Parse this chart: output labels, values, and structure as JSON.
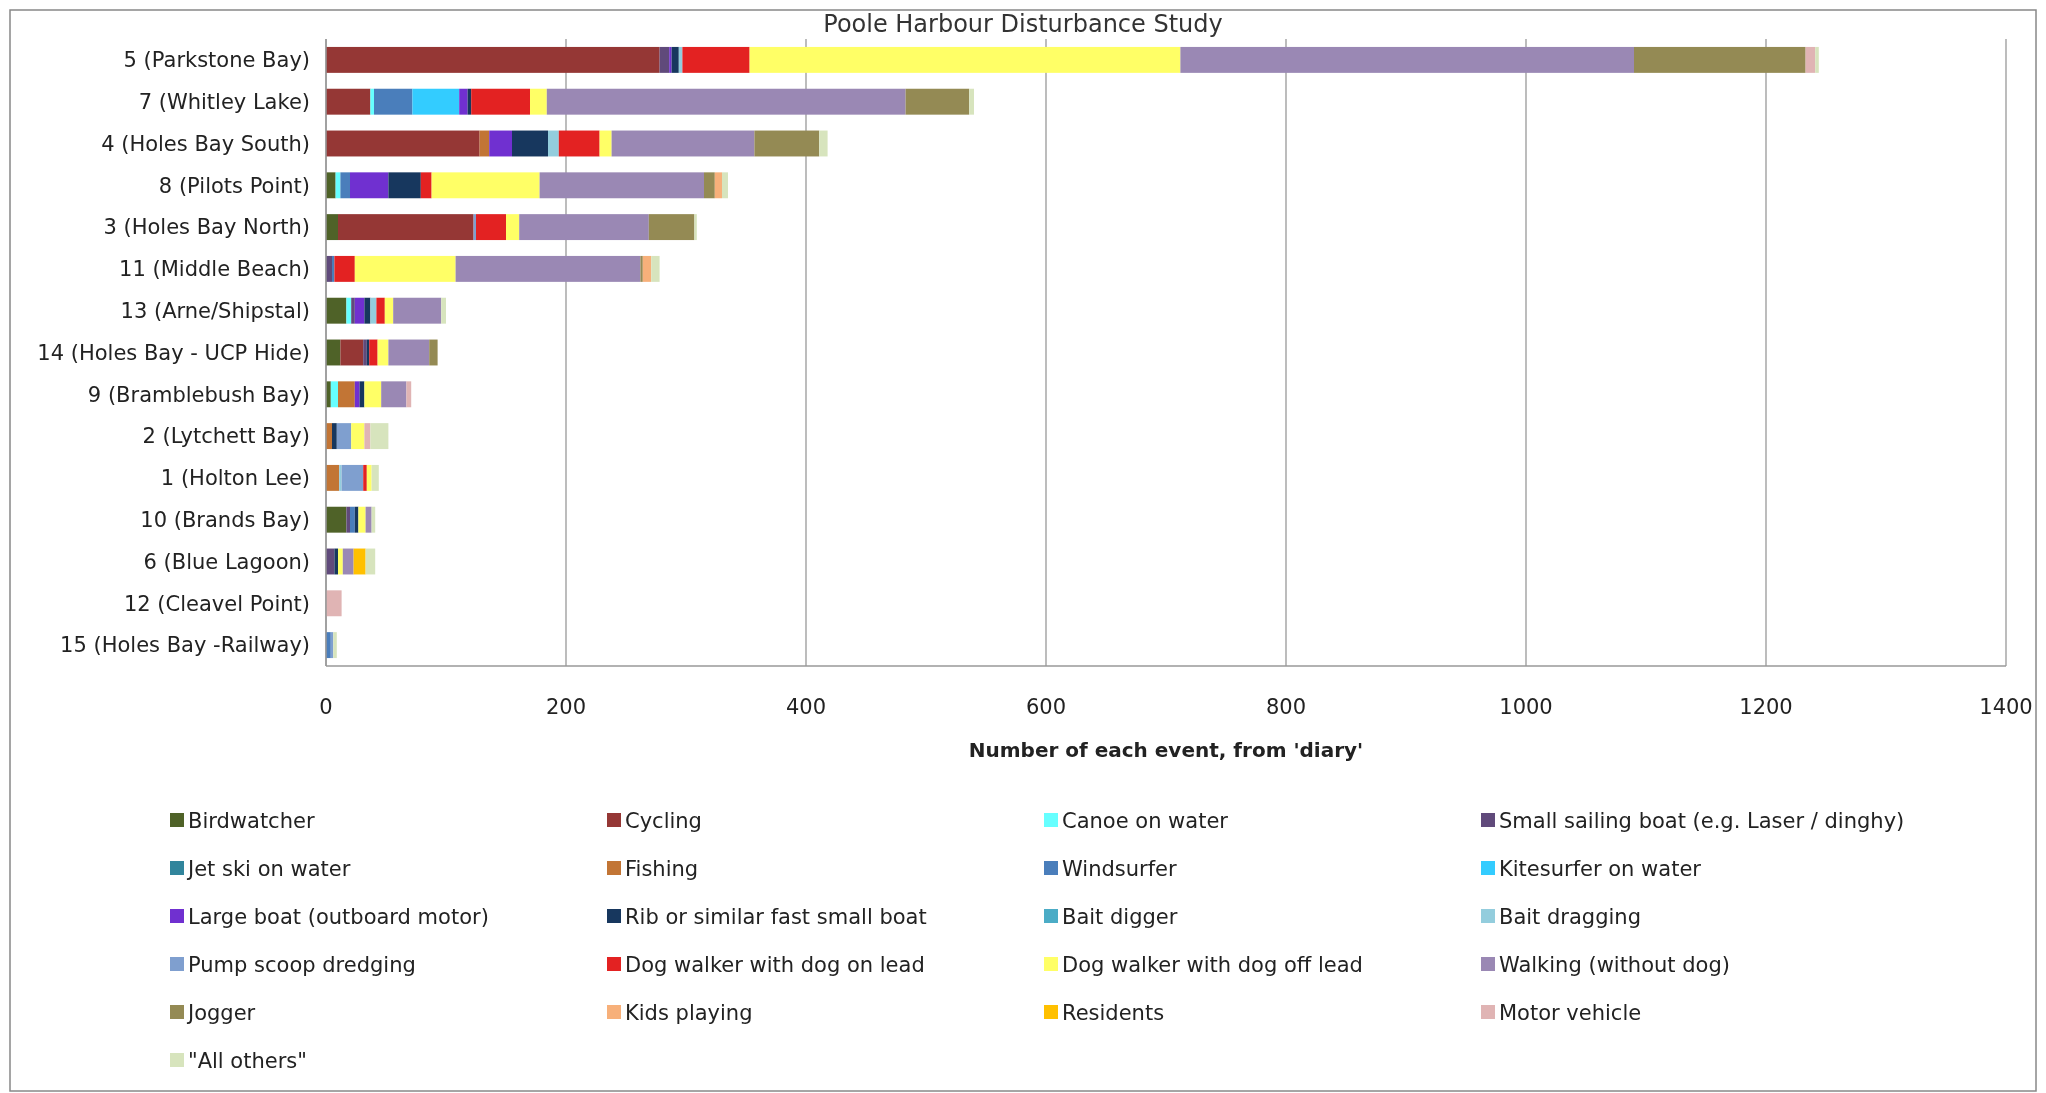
{
  "chart_data": {
    "type": "bar",
    "orientation": "horizontal",
    "stacked": true,
    "title": "Poole Harbour Disturbance Study",
    "xlabel": "Number of each event, from 'diary'",
    "categories": [
      "5 (Parkstone Bay)",
      "7 (Whitley Lake)",
      "4 (Holes Bay South)",
      "8 (Pilots Point)",
      "3 (Holes Bay North)",
      "11 (Middle Beach)",
      "13 (Arne/Shipstal)",
      "14 (Holes Bay - UCP Hide)",
      "9 (Bramblebush Bay)",
      "2 (Lytchett Bay)",
      "1 (Holton Lee)",
      "10 (Brands Bay)",
      "6 (Blue Lagoon)",
      "12 (Cleavel Point)",
      "15 (Holes Bay -Railway)"
    ],
    "xlim": [
      0,
      1400
    ],
    "xticks": [
      0,
      200,
      400,
      600,
      800,
      1000,
      1200,
      1400
    ],
    "grid": "x",
    "legend": "bottom",
    "series": [
      {
        "name": "Birdwatcher",
        "color": "#4f6228",
        "values": [
          0,
          0,
          0,
          8,
          10,
          0,
          17,
          12,
          4,
          0,
          0,
          17,
          0,
          0,
          0
        ]
      },
      {
        "name": "Cycling",
        "color": "#953735",
        "values": [
          278,
          37,
          128,
          0,
          113,
          0,
          0,
          19,
          0,
          0,
          0,
          0,
          0,
          0,
          0
        ]
      },
      {
        "name": "Canoe on water",
        "color": "#66ffff",
        "values": [
          0,
          3,
          0,
          4,
          0,
          0,
          4,
          0,
          6,
          0,
          0,
          0,
          0,
          0,
          0
        ]
      },
      {
        "name": "Small sailing boat (e.g. Laser / dinghy)",
        "color": "#604a7b",
        "values": [
          8,
          0,
          0,
          0,
          0,
          5,
          3,
          3,
          0,
          0,
          0,
          3,
          7,
          0,
          0
        ]
      },
      {
        "name": "Jet ski on water",
        "color": "#31859c",
        "values": [
          0,
          0,
          0,
          0,
          0,
          0,
          0,
          0,
          0,
          0,
          0,
          0,
          0,
          0,
          0
        ]
      },
      {
        "name": "Fishing",
        "color": "#c27535",
        "values": [
          0,
          0,
          8,
          0,
          0,
          0,
          0,
          0,
          14,
          5,
          11,
          0,
          0,
          0,
          0
        ]
      },
      {
        "name": "Windsurfer",
        "color": "#4a7ebb",
        "values": [
          0,
          32,
          0,
          8,
          0,
          2,
          0,
          0,
          0,
          0,
          0,
          4,
          0,
          0,
          4
        ]
      },
      {
        "name": "Kitesurfer on water",
        "color": "#33ccff",
        "values": [
          0,
          39,
          0,
          0,
          0,
          0,
          0,
          0,
          0,
          0,
          0,
          0,
          0,
          0,
          0
        ]
      },
      {
        "name": "Large boat (outboard motor)",
        "color": "#7030d0",
        "values": [
          2,
          7,
          19,
          32,
          0,
          0,
          8,
          0,
          4,
          0,
          0,
          0,
          0,
          0,
          0
        ]
      },
      {
        "name": "Rib or similar fast small boat",
        "color": "#17375e",
        "values": [
          6,
          3,
          30,
          27,
          0,
          0,
          5,
          2,
          4,
          4,
          0,
          3,
          3,
          0,
          0
        ]
      },
      {
        "name": "Bait digger",
        "color": "#4bacc6",
        "values": [
          0,
          0,
          0,
          0,
          0,
          0,
          0,
          0,
          0,
          0,
          0,
          0,
          0,
          0,
          0
        ]
      },
      {
        "name": "Bait dragging",
        "color": "#93cddd",
        "values": [
          3,
          0,
          9,
          0,
          0,
          0,
          5,
          0,
          0,
          0,
          2,
          0,
          0,
          0,
          0
        ]
      },
      {
        "name": "Pump scoop dredging",
        "color": "#7f9fcf",
        "values": [
          0,
          0,
          0,
          0,
          2,
          0,
          0,
          0,
          0,
          12,
          18,
          0,
          0,
          0,
          2
        ]
      },
      {
        "name": "Dog walker with dog on lead",
        "color": "#e32222",
        "values": [
          56,
          49,
          34,
          9,
          25,
          17,
          7,
          7,
          0,
          0,
          3,
          0,
          0,
          0,
          0
        ]
      },
      {
        "name": "Dog walker with dog off lead",
        "color": "#ffff66",
        "values": [
          359,
          14,
          10,
          90,
          11,
          84,
          7,
          9,
          14,
          11,
          4,
          6,
          4,
          0,
          0
        ]
      },
      {
        "name": "Walking (without dog)",
        "color": "#9a88b4",
        "values": [
          378,
          299,
          119,
          137,
          108,
          154,
          40,
          34,
          21,
          0,
          0,
          5,
          9,
          0,
          0
        ]
      },
      {
        "name": "Jogger",
        "color": "#948a54",
        "values": [
          143,
          53,
          54,
          9,
          38,
          2,
          0,
          7,
          0,
          0,
          0,
          0,
          0,
          0,
          0
        ]
      },
      {
        "name": "Kids playing",
        "color": "#f7b07a",
        "values": [
          0,
          0,
          0,
          6,
          0,
          7,
          0,
          0,
          0,
          0,
          0,
          0,
          0,
          0,
          0
        ]
      },
      {
        "name": "Residents",
        "color": "#ffc000",
        "values": [
          0,
          0,
          0,
          0,
          0,
          0,
          0,
          0,
          0,
          0,
          0,
          0,
          10,
          0,
          0
        ]
      },
      {
        "name": "Motor vehicle",
        "color": "#e0b4b4",
        "values": [
          8,
          0,
          0,
          0,
          0,
          0,
          0,
          0,
          4,
          5,
          0,
          0,
          0,
          13,
          0
        ]
      },
      {
        "name": "\"All others\"",
        "color": "#d7e4bd",
        "values": [
          3,
          4,
          7,
          5,
          2,
          7,
          4,
          0,
          0,
          15,
          6,
          3,
          8,
          0,
          3
        ]
      }
    ]
  }
}
